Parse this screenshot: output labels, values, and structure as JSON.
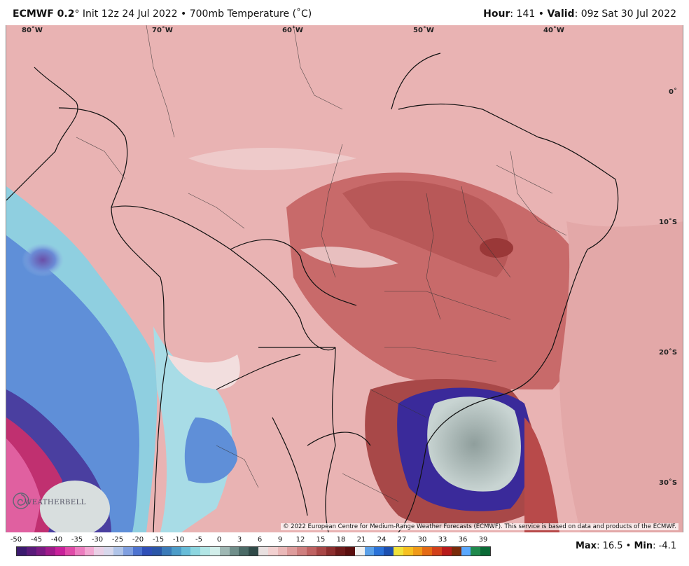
{
  "header": {
    "model": "ECMWF 0.2",
    "degree": "°",
    "init": " Init 12z 24 Jul 2022 • 700mb Temperature (˚C)",
    "hour_label": "Hour",
    "hour_value": ": 141 • ",
    "valid_label": "Valid",
    "valid_value": ": 09z Sat 30 Jul 2022"
  },
  "map": {
    "lon_labels": [
      "80˚W",
      "70˚W",
      "60˚W",
      "50˚W",
      "40˚W"
    ],
    "lat_labels": [
      "0˚",
      "10˚S",
      "20˚S",
      "30˚S"
    ],
    "copyright": "© 2022 European Centre for Medium-Range Weather Forecasts (ECMWF). This service is based on data and products of the ECMWF.",
    "logo_text": "WEATHERBELL"
  },
  "colorbar": {
    "ticks": [
      "-50",
      "-45",
      "-40",
      "-35",
      "-30",
      "-25",
      "-20",
      "-15",
      "-10",
      "-5",
      "0",
      "3",
      "6",
      "9",
      "12",
      "15",
      "18",
      "21",
      "24",
      "27",
      "30",
      "33",
      "36",
      "39"
    ],
    "colors": [
      "#3b1a6e",
      "#5a1a7a",
      "#7a1a82",
      "#a01a8a",
      "#c8209a",
      "#e04aa8",
      "#ec7cbf",
      "#f2a8d2",
      "#ead0e6",
      "#d8d8ec",
      "#b0c4e8",
      "#7f9fe0",
      "#4d73d0",
      "#2f4fb8",
      "#2a56a8",
      "#3a7ab8",
      "#4c9cc8",
      "#66bcd8",
      "#8cd6e0",
      "#b2e6e6",
      "#d2eeea",
      "#9fb8b4",
      "#6f8e8a",
      "#4a6a66",
      "#2f4a48",
      "#e8e0e0",
      "#f2d0d0",
      "#eab8b8",
      "#de9c9c",
      "#cf7f7f",
      "#bf6262",
      "#a84646",
      "#8c2e2e",
      "#6e1a1a",
      "#5a0e0e",
      "#f0f0f0",
      "#5aa0e8",
      "#2a72d8",
      "#1c4fb0",
      "#f0e23a",
      "#f6c020",
      "#f09a18",
      "#e46a14",
      "#d2401a",
      "#b81a1a",
      "#7a2a0a",
      "#5aa8ff",
      "#1f8a4c",
      "#0a6a36"
    ],
    "max_label": "Max",
    "max_value": ": 16.5 • ",
    "min_label": "Min",
    "min_value": ": -4.1"
  }
}
